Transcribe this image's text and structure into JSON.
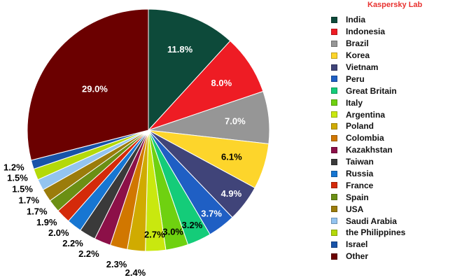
{
  "watermark": "Kaspersky Lab",
  "chart_data": {
    "type": "pie",
    "title": "",
    "start_angle_deg": 0,
    "direction": "clockwise",
    "slices": [
      {
        "label": "India",
        "value": 11.8,
        "display": "11.8%",
        "color": "#0d4a3a"
      },
      {
        "label": "Indonesia",
        "value": 8.0,
        "display": "8.0%",
        "color": "#ee1c24"
      },
      {
        "label": "Brazil",
        "value": 7.0,
        "display": "7.0%",
        "color": "#969696"
      },
      {
        "label": "Korea",
        "value": 6.1,
        "display": "6.1%",
        "color": "#fdd52b"
      },
      {
        "label": "Vietnam",
        "value": 4.9,
        "display": "4.9%",
        "color": "#404479"
      },
      {
        "label": "Peru",
        "value": 3.7,
        "display": "3.7%",
        "color": "#1f5fc4"
      },
      {
        "label": "Great Britain",
        "value": 3.2,
        "display": "3.2%",
        "color": "#14cc79"
      },
      {
        "label": "Italy",
        "value": 3.0,
        "display": "3.0%",
        "color": "#6fd110"
      },
      {
        "label": "Argentina",
        "value": 2.7,
        "display": "2.7%",
        "color": "#c9e80f"
      },
      {
        "label": "Poland",
        "value": 2.4,
        "display": "2.4%",
        "color": "#d0ab00"
      },
      {
        "label": "Colombia",
        "value": 2.3,
        "display": "2.3%",
        "color": "#d17700"
      },
      {
        "label": "Kazakhstan",
        "value": 2.2,
        "display": "2.2%",
        "color": "#8c1048"
      },
      {
        "label": "Taiwan",
        "value": 2.2,
        "display": "2.2%",
        "color": "#3a3a3a"
      },
      {
        "label": "Russia",
        "value": 2.0,
        "display": "2.0%",
        "color": "#1776d2"
      },
      {
        "label": "France",
        "value": 1.9,
        "display": "1.9%",
        "color": "#d42a0a"
      },
      {
        "label": "Spain",
        "value": 1.7,
        "display": "1.7%",
        "color": "#6b8f14"
      },
      {
        "label": "USA",
        "value": 1.7,
        "display": "1.7%",
        "color": "#9b7c0b"
      },
      {
        "label": "Saudi Arabia",
        "value": 1.5,
        "display": "1.5%",
        "color": "#93c4ef"
      },
      {
        "label": "the Philippines",
        "value": 1.5,
        "display": "1.5%",
        "color": "#b4d90a"
      },
      {
        "label": "Israel",
        "value": 1.2,
        "display": "1.2%",
        "color": "#1853a8"
      },
      {
        "label": "Other",
        "value": 29.0,
        "display": "29.0%",
        "color": "#6b0000"
      }
    ]
  }
}
